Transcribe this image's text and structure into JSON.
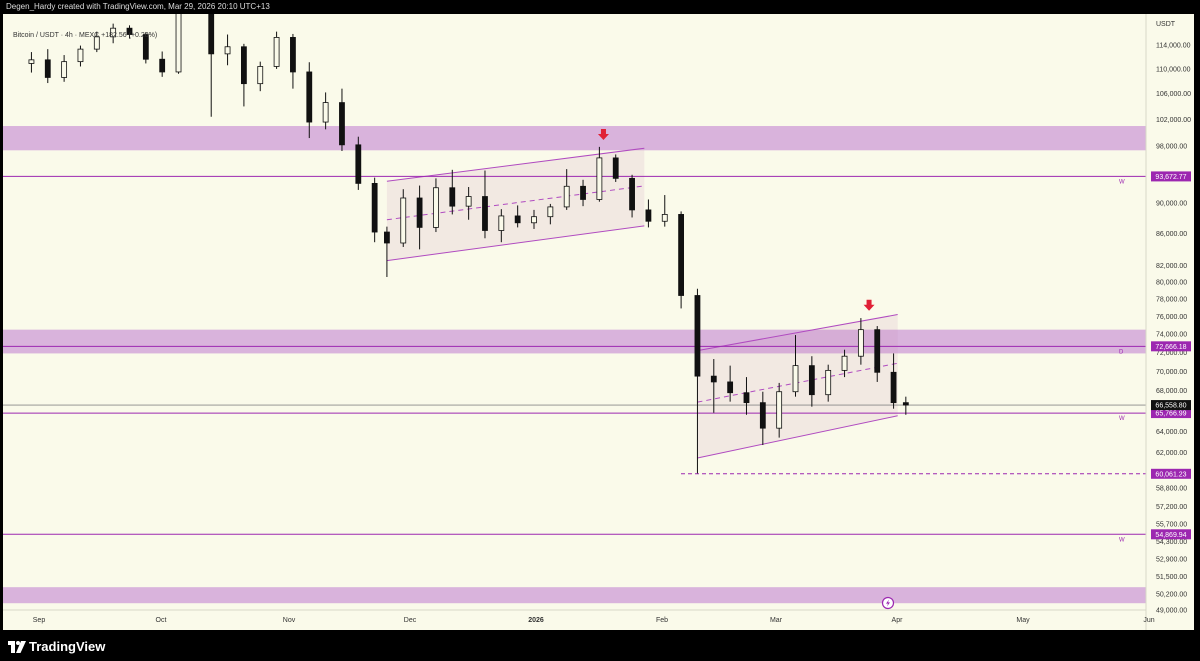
{
  "header": {
    "credit": "Degen_Hardy created with TradingView.com, Mar 29, 2026 20:10 UTC+13"
  },
  "symbol": {
    "text": "Bitcoin / USDT · 4h · MEXC  +182.56 (+0.28%)"
  },
  "footer": {
    "brand": "TradingView"
  },
  "colors": {
    "background": "#fafaea",
    "zone": "#d9b3dc",
    "purple": "#9c27b0",
    "candle": "#111111",
    "arrow": "#e02036"
  },
  "chart_data": {
    "type": "candlestick",
    "title": "Bitcoin / USDT · 4h · MEXC",
    "currency": "USDT",
    "y_axis": {
      "scale": "log",
      "ticks": [
        114000,
        110000,
        106000,
        102000,
        98000,
        94000,
        90000,
        86000,
        82000,
        80000,
        78000,
        76000,
        74000,
        72000,
        70000,
        68000,
        64000,
        62000,
        58800,
        57200,
        55700,
        54300,
        52900,
        51500,
        50200,
        49000
      ],
      "tick_labels": [
        "114,000.00",
        "110,000.00",
        "106,000.00",
        "102,000.00",
        "98,000.00",
        "94,000.00",
        "90,000.00",
        "86,000.00",
        "82,000.00",
        "80,000.00",
        "78,000.00",
        "76,000.00",
        "74,000.00",
        "72,000.00",
        "70,000.00",
        "68,000.00",
        "64,000.00",
        "62,000.00",
        "58,800.00",
        "57,200.00",
        "55,700.00",
        "54,300.00",
        "52,900.00",
        "51,500.00",
        "50,200.00",
        "49,000.00"
      ]
    },
    "x_axis": {
      "labels": [
        "Sep",
        "Oct",
        "Nov",
        "Dec",
        "2026",
        "Feb",
        "Mar",
        "Apr",
        "May",
        "Jun"
      ]
    },
    "price_marks": [
      {
        "label": "93,672.77",
        "value": 93672.77,
        "style": "solid",
        "tag": "W"
      },
      {
        "label": "72,666.18",
        "value": 72666.18,
        "style": "solid",
        "tag": "D"
      },
      {
        "label": "65,766.99",
        "value": 65766.99,
        "style": "solid",
        "tag": "W"
      },
      {
        "label": "60,061.23",
        "value": 60061.23,
        "style": "dashed",
        "tag": ""
      },
      {
        "label": "54,869.94",
        "value": 54869.94,
        "style": "solid",
        "tag": "W"
      }
    ],
    "current_price": {
      "label": "66,558.80",
      "value": 66558.8
    },
    "zones": [
      {
        "from": 97400,
        "to": 101000
      },
      {
        "from": 71900,
        "to": 74500
      },
      {
        "from": 49500,
        "to": 50700
      }
    ],
    "channels": [
      {
        "start": "Nov 22",
        "end": "Jan 24",
        "upper": [
          93000,
          97700
        ],
        "lower": [
          82600,
          87000
        ],
        "mid": [
          87800,
          92350
        ]
      },
      {
        "start": "Feb 6",
        "end": "Mar 27",
        "upper": [
          72200,
          76200
        ],
        "lower": [
          61500,
          65500
        ],
        "mid": [
          66850,
          70850
        ]
      }
    ],
    "arrows": [
      {
        "date": "Jan 14",
        "value": 99500
      },
      {
        "date": "Mar 20",
        "value": 77100
      }
    ],
    "candles": [
      {
        "d": "Aug 27",
        "o": 110900,
        "h": 112800,
        "l": 109400,
        "c": 111500
      },
      {
        "d": "Aug 31",
        "o": 111500,
        "h": 113300,
        "l": 107700,
        "c": 108600
      },
      {
        "d": "Sep 4",
        "o": 108600,
        "h": 112300,
        "l": 107900,
        "c": 111200
      },
      {
        "d": "Sep 8",
        "o": 111200,
        "h": 113900,
        "l": 110400,
        "c": 113300
      },
      {
        "d": "Sep 12",
        "o": 113300,
        "h": 116300,
        "l": 112800,
        "c": 115400
      },
      {
        "d": "Sep 16",
        "o": 115400,
        "h": 117700,
        "l": 114300,
        "c": 116900
      },
      {
        "d": "Sep 20",
        "o": 116900,
        "h": 117400,
        "l": 115100,
        "c": 115800
      },
      {
        "d": "Sep 24",
        "o": 115800,
        "h": 116200,
        "l": 110900,
        "c": 111600
      },
      {
        "d": "Sep 28",
        "o": 111600,
        "h": 112900,
        "l": 108700,
        "c": 109500
      },
      {
        "d": "Oct 2",
        "o": 109500,
        "h": 120600,
        "l": 109200,
        "c": 120100
      },
      {
        "d": "Oct 6",
        "o": 120100,
        "h": 126200,
        "l": 119600,
        "c": 124800
      },
      {
        "d": "Oct 10",
        "o": 124800,
        "h": 125100,
        "l": 102400,
        "c": 112500
      },
      {
        "d": "Oct 14",
        "o": 112500,
        "h": 115800,
        "l": 110600,
        "c": 113700
      },
      {
        "d": "Oct 18",
        "o": 113700,
        "h": 114200,
        "l": 104000,
        "c": 107600
      },
      {
        "d": "Oct 22",
        "o": 107600,
        "h": 111200,
        "l": 106400,
        "c": 110400
      },
      {
        "d": "Oct 26",
        "o": 110400,
        "h": 116300,
        "l": 110000,
        "c": 115300
      },
      {
        "d": "Oct 30",
        "o": 115300,
        "h": 115900,
        "l": 106800,
        "c": 109500
      },
      {
        "d": "Nov 3",
        "o": 109500,
        "h": 111100,
        "l": 99200,
        "c": 101600
      },
      {
        "d": "Nov 7",
        "o": 101600,
        "h": 106200,
        "l": 100500,
        "c": 104600
      },
      {
        "d": "Nov 11",
        "o": 104600,
        "h": 106800,
        "l": 97300,
        "c": 98200
      },
      {
        "d": "Nov 15",
        "o": 98200,
        "h": 99400,
        "l": 91800,
        "c": 92700
      },
      {
        "d": "Nov 19",
        "o": 92700,
        "h": 93500,
        "l": 84900,
        "c": 86200
      },
      {
        "d": "Nov 22",
        "o": 86200,
        "h": 86900,
        "l": 80600,
        "c": 84800
      },
      {
        "d": "Nov 26",
        "o": 84800,
        "h": 91900,
        "l": 84300,
        "c": 90700
      },
      {
        "d": "Nov 30",
        "o": 90700,
        "h": 92400,
        "l": 84000,
        "c": 86800
      },
      {
        "d": "Dec 4",
        "o": 86800,
        "h": 93400,
        "l": 86200,
        "c": 92100
      },
      {
        "d": "Dec 8",
        "o": 92100,
        "h": 94600,
        "l": 88500,
        "c": 89600
      },
      {
        "d": "Dec 12",
        "o": 89600,
        "h": 92200,
        "l": 87800,
        "c": 90900
      },
      {
        "d": "Dec 16",
        "o": 90900,
        "h": 94500,
        "l": 85400,
        "c": 86400
      },
      {
        "d": "Dec 20",
        "o": 86400,
        "h": 89200,
        "l": 84900,
        "c": 88300
      },
      {
        "d": "Dec 24",
        "o": 88300,
        "h": 89700,
        "l": 86800,
        "c": 87400
      },
      {
        "d": "Dec 28",
        "o": 87400,
        "h": 89100,
        "l": 86600,
        "c": 88200
      },
      {
        "d": "Jan 1",
        "o": 88200,
        "h": 89900,
        "l": 87200,
        "c": 89500
      },
      {
        "d": "Jan 5",
        "o": 89500,
        "h": 94700,
        "l": 89100,
        "c": 92300
      },
      {
        "d": "Jan 9",
        "o": 92300,
        "h": 93200,
        "l": 89600,
        "c": 90500
      },
      {
        "d": "Jan 13",
        "o": 90500,
        "h": 97900,
        "l": 90200,
        "c": 96300
      },
      {
        "d": "Jan 17",
        "o": 96300,
        "h": 96800,
        "l": 92900,
        "c": 93400
      },
      {
        "d": "Jan 21",
        "o": 93400,
        "h": 93900,
        "l": 88100,
        "c": 89100
      },
      {
        "d": "Jan 25",
        "o": 89100,
        "h": 90500,
        "l": 86800,
        "c": 87600
      },
      {
        "d": "Jan 29",
        "o": 87600,
        "h": 91100,
        "l": 86900,
        "c": 88500
      },
      {
        "d": "Feb 2",
        "o": 88500,
        "h": 88900,
        "l": 76900,
        "c": 78400
      },
      {
        "d": "Feb 6",
        "o": 78400,
        "h": 79200,
        "l": 60100,
        "c": 69500
      },
      {
        "d": "Feb 10",
        "o": 69500,
        "h": 71300,
        "l": 65800,
        "c": 68900
      },
      {
        "d": "Feb 14",
        "o": 68900,
        "h": 70600,
        "l": 66900,
        "c": 67800
      },
      {
        "d": "Feb 18",
        "o": 67800,
        "h": 69400,
        "l": 65600,
        "c": 66800
      },
      {
        "d": "Feb 22",
        "o": 66800,
        "h": 67900,
        "l": 62700,
        "c": 64300
      },
      {
        "d": "Feb 26",
        "o": 64300,
        "h": 68800,
        "l": 63400,
        "c": 67900
      },
      {
        "d": "Mar 2",
        "o": 67900,
        "h": 73900,
        "l": 67400,
        "c": 70600
      },
      {
        "d": "Mar 6",
        "o": 70600,
        "h": 71600,
        "l": 66400,
        "c": 67600
      },
      {
        "d": "Mar 10",
        "o": 67600,
        "h": 70700,
        "l": 66900,
        "c": 70100
      },
      {
        "d": "Mar 14",
        "o": 70100,
        "h": 72300,
        "l": 69400,
        "c": 71600
      },
      {
        "d": "Mar 18",
        "o": 71600,
        "h": 75800,
        "l": 70700,
        "c": 74500
      },
      {
        "d": "Mar 22",
        "o": 74500,
        "h": 74900,
        "l": 68900,
        "c": 69900
      },
      {
        "d": "Mar 26",
        "o": 69900,
        "h": 71900,
        "l": 66200,
        "c": 66800
      },
      {
        "d": "Mar 29",
        "o": 66800,
        "h": 67400,
        "l": 65600,
        "c": 66558.8
      }
    ]
  }
}
